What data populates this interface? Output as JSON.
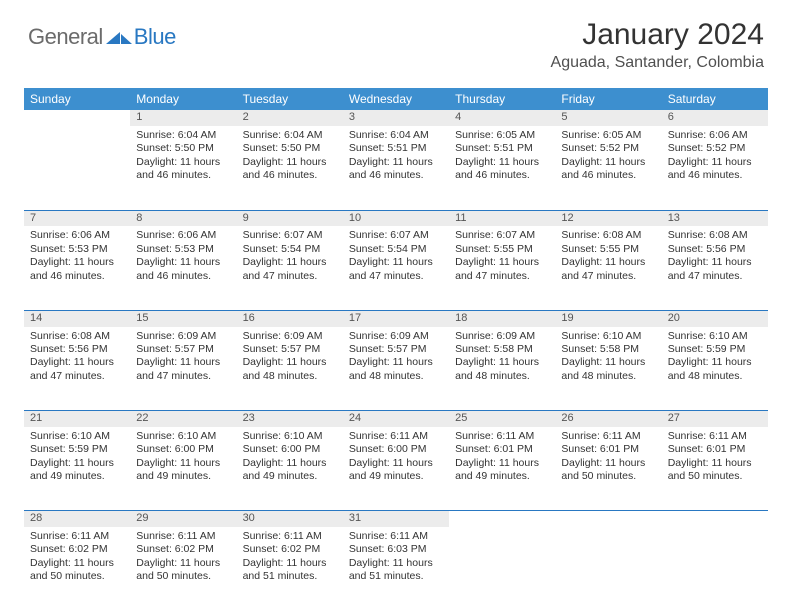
{
  "logo": {
    "text1": "General",
    "text2": "Blue"
  },
  "title": "January 2024",
  "location": "Aguada, Santander, Colombia",
  "daysOfWeek": [
    "Sunday",
    "Monday",
    "Tuesday",
    "Wednesday",
    "Thursday",
    "Friday",
    "Saturday"
  ],
  "colors": {
    "headerBg": "#3d8fcf",
    "dayNumBg": "#ececec",
    "rowDivider": "#2978c2",
    "logoBlue": "#2978c2",
    "logoGray": "#6b6b6b"
  },
  "weeks": [
    [
      null,
      {
        "n": "1",
        "sr": "6:04 AM",
        "ss": "5:50 PM",
        "dl": "11 hours and 46 minutes."
      },
      {
        "n": "2",
        "sr": "6:04 AM",
        "ss": "5:50 PM",
        "dl": "11 hours and 46 minutes."
      },
      {
        "n": "3",
        "sr": "6:04 AM",
        "ss": "5:51 PM",
        "dl": "11 hours and 46 minutes."
      },
      {
        "n": "4",
        "sr": "6:05 AM",
        "ss": "5:51 PM",
        "dl": "11 hours and 46 minutes."
      },
      {
        "n": "5",
        "sr": "6:05 AM",
        "ss": "5:52 PM",
        "dl": "11 hours and 46 minutes."
      },
      {
        "n": "6",
        "sr": "6:06 AM",
        "ss": "5:52 PM",
        "dl": "11 hours and 46 minutes."
      }
    ],
    [
      {
        "n": "7",
        "sr": "6:06 AM",
        "ss": "5:53 PM",
        "dl": "11 hours and 46 minutes."
      },
      {
        "n": "8",
        "sr": "6:06 AM",
        "ss": "5:53 PM",
        "dl": "11 hours and 46 minutes."
      },
      {
        "n": "9",
        "sr": "6:07 AM",
        "ss": "5:54 PM",
        "dl": "11 hours and 47 minutes."
      },
      {
        "n": "10",
        "sr": "6:07 AM",
        "ss": "5:54 PM",
        "dl": "11 hours and 47 minutes."
      },
      {
        "n": "11",
        "sr": "6:07 AM",
        "ss": "5:55 PM",
        "dl": "11 hours and 47 minutes."
      },
      {
        "n": "12",
        "sr": "6:08 AM",
        "ss": "5:55 PM",
        "dl": "11 hours and 47 minutes."
      },
      {
        "n": "13",
        "sr": "6:08 AM",
        "ss": "5:56 PM",
        "dl": "11 hours and 47 minutes."
      }
    ],
    [
      {
        "n": "14",
        "sr": "6:08 AM",
        "ss": "5:56 PM",
        "dl": "11 hours and 47 minutes."
      },
      {
        "n": "15",
        "sr": "6:09 AM",
        "ss": "5:57 PM",
        "dl": "11 hours and 47 minutes."
      },
      {
        "n": "16",
        "sr": "6:09 AM",
        "ss": "5:57 PM",
        "dl": "11 hours and 48 minutes."
      },
      {
        "n": "17",
        "sr": "6:09 AM",
        "ss": "5:57 PM",
        "dl": "11 hours and 48 minutes."
      },
      {
        "n": "18",
        "sr": "6:09 AM",
        "ss": "5:58 PM",
        "dl": "11 hours and 48 minutes."
      },
      {
        "n": "19",
        "sr": "6:10 AM",
        "ss": "5:58 PM",
        "dl": "11 hours and 48 minutes."
      },
      {
        "n": "20",
        "sr": "6:10 AM",
        "ss": "5:59 PM",
        "dl": "11 hours and 48 minutes."
      }
    ],
    [
      {
        "n": "21",
        "sr": "6:10 AM",
        "ss": "5:59 PM",
        "dl": "11 hours and 49 minutes."
      },
      {
        "n": "22",
        "sr": "6:10 AM",
        "ss": "6:00 PM",
        "dl": "11 hours and 49 minutes."
      },
      {
        "n": "23",
        "sr": "6:10 AM",
        "ss": "6:00 PM",
        "dl": "11 hours and 49 minutes."
      },
      {
        "n": "24",
        "sr": "6:11 AM",
        "ss": "6:00 PM",
        "dl": "11 hours and 49 minutes."
      },
      {
        "n": "25",
        "sr": "6:11 AM",
        "ss": "6:01 PM",
        "dl": "11 hours and 49 minutes."
      },
      {
        "n": "26",
        "sr": "6:11 AM",
        "ss": "6:01 PM",
        "dl": "11 hours and 50 minutes."
      },
      {
        "n": "27",
        "sr": "6:11 AM",
        "ss": "6:01 PM",
        "dl": "11 hours and 50 minutes."
      }
    ],
    [
      {
        "n": "28",
        "sr": "6:11 AM",
        "ss": "6:02 PM",
        "dl": "11 hours and 50 minutes."
      },
      {
        "n": "29",
        "sr": "6:11 AM",
        "ss": "6:02 PM",
        "dl": "11 hours and 50 minutes."
      },
      {
        "n": "30",
        "sr": "6:11 AM",
        "ss": "6:02 PM",
        "dl": "11 hours and 51 minutes."
      },
      {
        "n": "31",
        "sr": "6:11 AM",
        "ss": "6:03 PM",
        "dl": "11 hours and 51 minutes."
      },
      null,
      null,
      null
    ]
  ]
}
